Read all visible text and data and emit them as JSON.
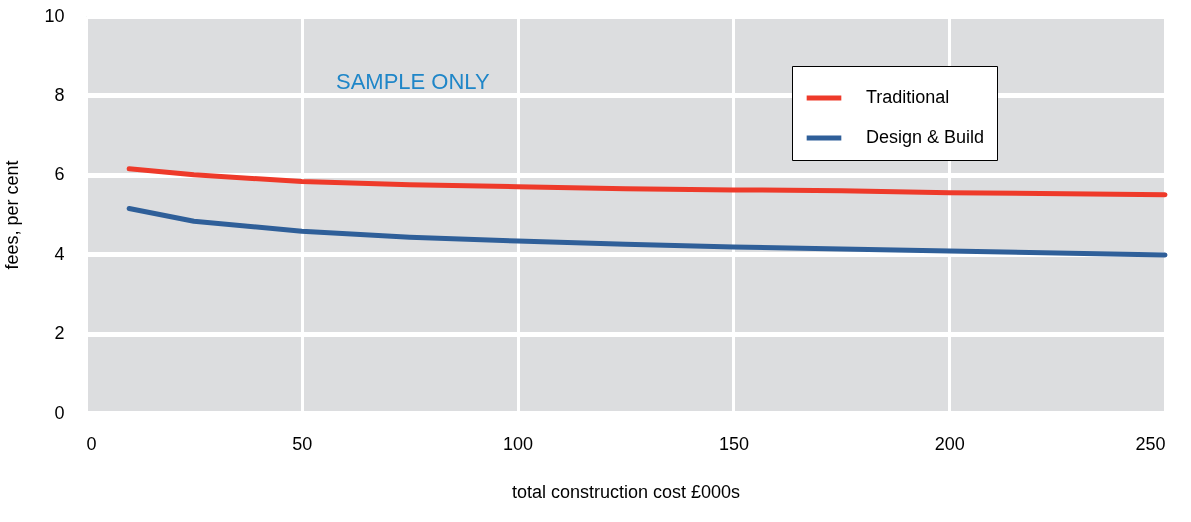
{
  "chart_data": {
    "type": "line",
    "xlabel": "total construction cost £000s",
    "ylabel": "fees, per cent",
    "x": [
      10,
      25,
      50,
      75,
      100,
      125,
      150,
      175,
      200,
      250
    ],
    "series": [
      {
        "name": "Traditional",
        "color": "#ee3a2a",
        "values": [
          6.15,
          6.0,
          5.83,
          5.75,
          5.7,
          5.65,
          5.62,
          5.6,
          5.55,
          5.5
        ]
      },
      {
        "name": "Design & Build",
        "color": "#2f5f99",
        "values": [
          5.15,
          4.83,
          4.58,
          4.43,
          4.33,
          4.25,
          4.18,
          4.13,
          4.08,
          3.98
        ]
      }
    ],
    "xlim": [
      0,
      250
    ],
    "xticks": [
      0,
      50,
      100,
      150,
      200,
      250
    ],
    "ylim": [
      0,
      10
    ],
    "yticks": [
      0,
      2,
      4,
      6,
      8,
      10
    ],
    "grid": true,
    "legend": "top right",
    "marker": "none",
    "line_style": "solid",
    "annotations": [
      "SAMPLE ONLY"
    ]
  }
}
